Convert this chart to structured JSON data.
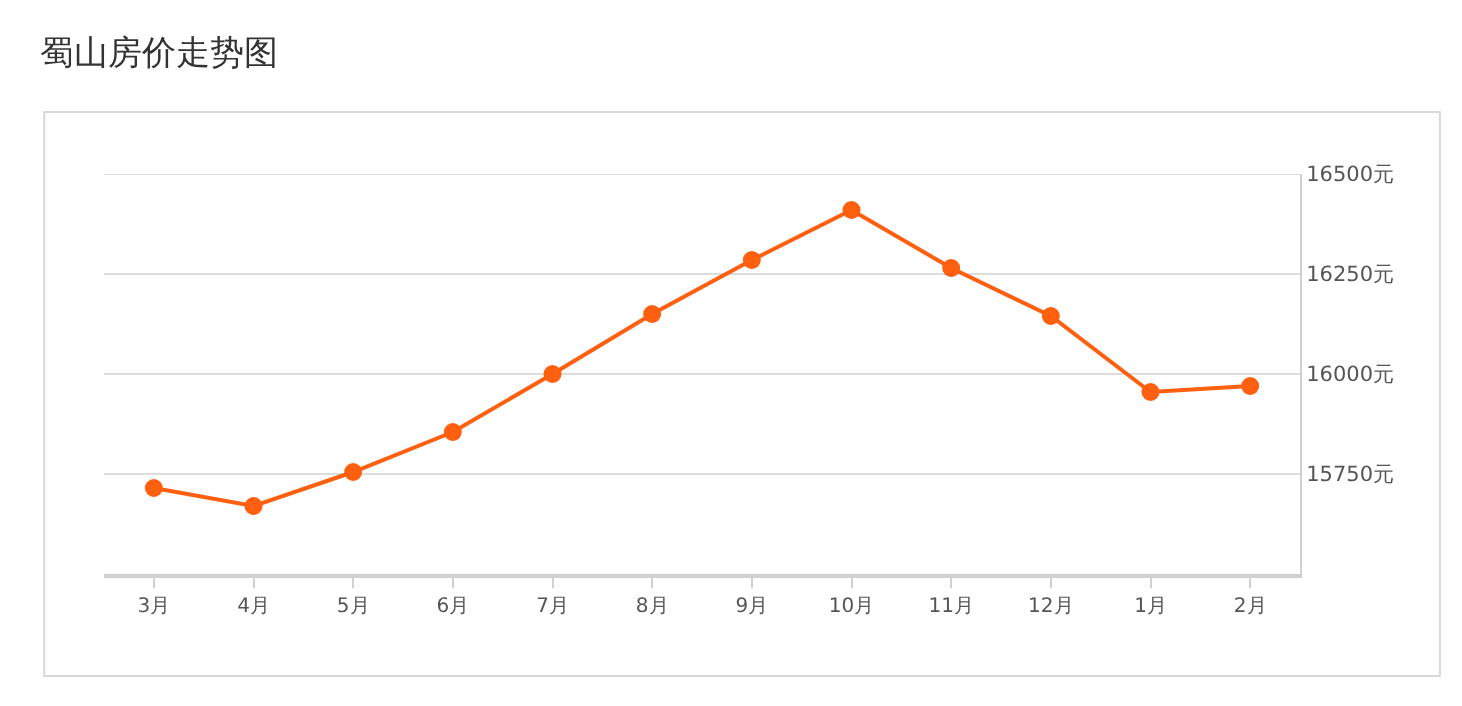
{
  "chart_data": {
    "type": "line",
    "title": "蜀山房价走势图",
    "categories": [
      "3月",
      "4月",
      "5月",
      "6月",
      "7月",
      "8月",
      "9月",
      "10月",
      "11月",
      "12月",
      "1月",
      "2月"
    ],
    "series": [
      {
        "color": "#ff6010",
        "values": [
          15715,
          15670,
          15755,
          15855,
          16000,
          16150,
          16285,
          16410,
          16265,
          16145,
          15955,
          15970
        ]
      }
    ],
    "ylim": [
      15500,
      16500
    ],
    "yticks": [
      {
        "value": 15750,
        "label": "15750元"
      },
      {
        "value": 16000,
        "label": "16000元"
      },
      {
        "value": 16250,
        "label": "16250元"
      },
      {
        "value": 16500,
        "label": "16500元"
      }
    ],
    "grid": "y",
    "marker": "circle",
    "line_style": "solid"
  }
}
